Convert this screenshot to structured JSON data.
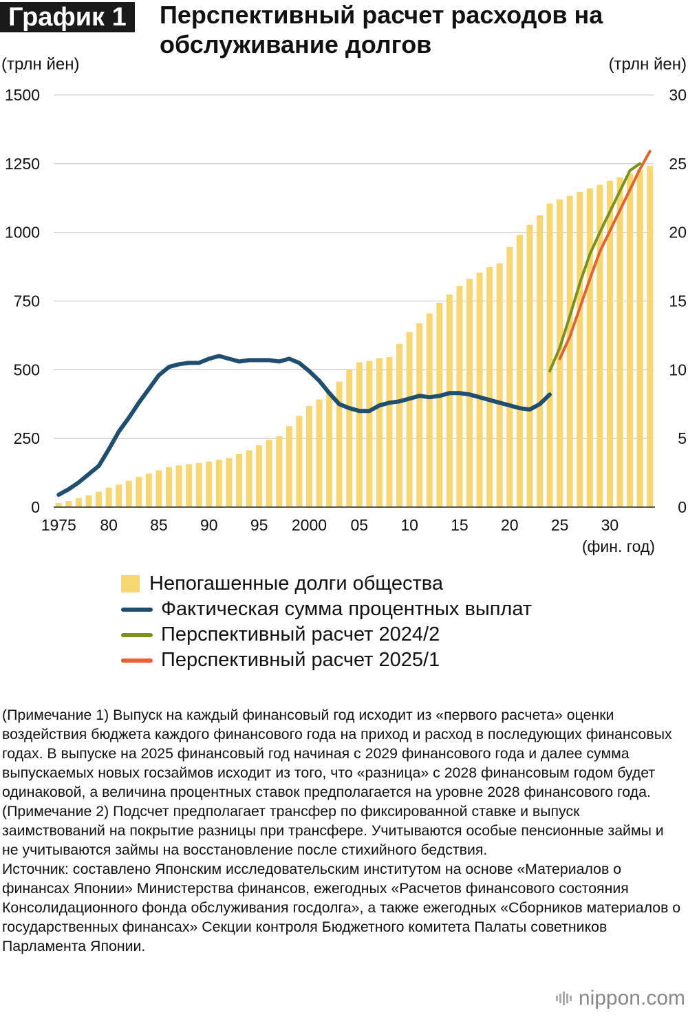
{
  "header": {
    "badge": "График 1",
    "title": "Перспективный расчет расходов на обслуживание долгов",
    "left_unit": "(трлн йен)",
    "right_unit": "(трлн йен)"
  },
  "chart_data": {
    "type": "bar",
    "x_axis": {
      "ticks": [
        1975,
        1980,
        1985,
        1990,
        1995,
        2000,
        2005,
        2010,
        2015,
        2020,
        2025,
        2030
      ],
      "tick_labels": [
        "1975",
        "80",
        "85",
        "90",
        "95",
        "2000",
        "05",
        "10",
        "15",
        "20",
        "25",
        "30"
      ],
      "unit_label": "(фин. год)",
      "range": [
        1975,
        2034
      ]
    },
    "left_axis": {
      "range": [
        0,
        1500
      ],
      "ticks": [
        0,
        250,
        500,
        750,
        1000,
        1250,
        1500
      ]
    },
    "right_axis": {
      "range": [
        0,
        30
      ],
      "ticks": [
        0,
        5,
        10,
        15,
        20,
        25,
        30
      ]
    },
    "grid": true,
    "colors": {
      "bars": "#f7d774",
      "actual": "#1f4e6e",
      "forecast_2024": "#7a921c",
      "forecast_2025": "#e06331",
      "grid": "#cfcfcf"
    },
    "series": [
      {
        "name": "Непогашенные долги общества",
        "type": "bar",
        "axis": "left",
        "years": [
          1975,
          1976,
          1977,
          1978,
          1979,
          1980,
          1981,
          1982,
          1983,
          1984,
          1985,
          1986,
          1987,
          1988,
          1989,
          1990,
          1991,
          1992,
          1993,
          1994,
          1995,
          1996,
          1997,
          1998,
          1999,
          2000,
          2001,
          2002,
          2003,
          2004,
          2005,
          2006,
          2007,
          2008,
          2009,
          2010,
          2011,
          2012,
          2013,
          2014,
          2015,
          2016,
          2017,
          2018,
          2019,
          2020,
          2021,
          2022,
          2023,
          2024,
          2025,
          2026,
          2027,
          2028,
          2029,
          2030,
          2031,
          2032,
          2033,
          2034
        ],
        "values": [
          15,
          22,
          33,
          43,
          56,
          71,
          82,
          96,
          110,
          122,
          134,
          145,
          152,
          156,
          161,
          166,
          172,
          178,
          193,
          207,
          225,
          245,
          258,
          295,
          332,
          368,
          392,
          422,
          457,
          499,
          527,
          532,
          542,
          546,
          594,
          637,
          669,
          705,
          744,
          774,
          805,
          831,
          853,
          874,
          887,
          947,
          991,
          1027,
          1062,
          1105,
          1120,
          1133,
          1147,
          1160,
          1173,
          1187,
          1200,
          1215,
          1228,
          1242
        ]
      },
      {
        "name": "Фактическая сумма процентных выплат",
        "type": "line",
        "axis": "right",
        "years": [
          1975,
          1976,
          1977,
          1978,
          1979,
          1980,
          1981,
          1982,
          1983,
          1984,
          1985,
          1986,
          1987,
          1988,
          1989,
          1990,
          1991,
          1992,
          1993,
          1994,
          1995,
          1996,
          1997,
          1998,
          1999,
          2000,
          2001,
          2002,
          2003,
          2004,
          2005,
          2006,
          2007,
          2008,
          2009,
          2010,
          2011,
          2012,
          2013,
          2014,
          2015,
          2016,
          2017,
          2018,
          2019,
          2020,
          2021,
          2022,
          2023,
          2024
        ],
        "values": [
          0.9,
          1.3,
          1.8,
          2.4,
          3.0,
          4.2,
          5.5,
          6.5,
          7.6,
          8.6,
          9.6,
          10.2,
          10.4,
          10.5,
          10.5,
          10.8,
          11.0,
          10.8,
          10.6,
          10.7,
          10.7,
          10.7,
          10.6,
          10.8,
          10.5,
          9.9,
          9.2,
          8.3,
          7.5,
          7.2,
          7.0,
          7.0,
          7.4,
          7.6,
          7.7,
          7.9,
          8.1,
          8.0,
          8.1,
          8.3,
          8.3,
          8.2,
          8.0,
          7.8,
          7.6,
          7.4,
          7.2,
          7.1,
          7.5,
          8.2
        ]
      },
      {
        "name": "Перспективный расчет 2024/2",
        "type": "line",
        "axis": "right",
        "years": [
          2024,
          2025,
          2026,
          2027,
          2028,
          2029,
          2030,
          2031,
          2032,
          2033
        ],
        "values": [
          9.9,
          11.6,
          13.9,
          16.3,
          18.4,
          20.0,
          21.5,
          23.0,
          24.5,
          25.0
        ]
      },
      {
        "name": "Перспективный расчет 2025/1",
        "type": "line",
        "axis": "right",
        "years": [
          2025,
          2026,
          2027,
          2028,
          2029,
          2030,
          2031,
          2032,
          2033,
          2034
        ],
        "values": [
          10.8,
          12.4,
          14.5,
          16.6,
          18.6,
          20.1,
          21.6,
          23.1,
          24.6,
          25.9
        ]
      }
    ]
  },
  "notes": [
    "(Примечание 1) Выпуск на каждый финансовый год исходит из «первого расчета» оценки воздействия бюджета каждого финансового года на приход и расход в последующих финансовых годах. В выпуске на 2025 финансовый год начиная с 2029 финансового года и далее сумма выпускаемых новых госзаймов исходит из того, что «разница» с 2028 финансовым годом будет одинаковой, а величина процентных ставок предполагается на уровне 2028 финансового года.",
    "(Примечание 2) Подсчет предполагает трансфер по фиксированной ставке и выпуск заимствований на покрытие разницы при трансфере. Учитываются особые пенсионные займы и не учитываются займы на восстановление после стихийного бедствия.",
    "Источник: составлено Японским исследовательским институтом на основе «Материалов о финансах Японии» Министерства финансов, ежегодных «Расчетов финансового состояния Консолидационного фонда обслуживания госдолга», а также ежегодных «Сборников материалов о государственных финансах» Секции контроля Бюджетного комитета Палаты советников Парламента Японии."
  ],
  "brand": "nippon.com"
}
